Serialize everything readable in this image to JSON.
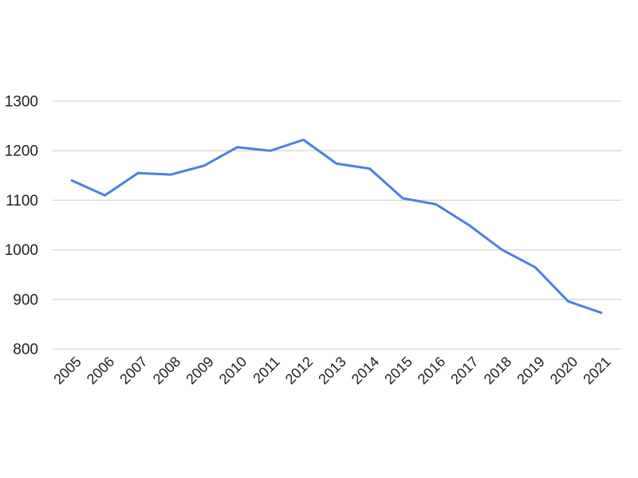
{
  "page": {
    "background_color": "#ffffff"
  },
  "chart_data": {
    "type": "line",
    "title": "",
    "xlabel": "",
    "ylabel": "",
    "categories": [
      "2005",
      "2006",
      "2007",
      "2008",
      "2009",
      "2010",
      "2011",
      "2012",
      "2013",
      "2014",
      "2015",
      "2016",
      "2017",
      "2018",
      "2019",
      "2020",
      "2021"
    ],
    "values": [
      1140,
      1110,
      1155,
      1152,
      1170,
      1207,
      1200,
      1222,
      1174,
      1164,
      1104,
      1092,
      1050,
      1000,
      965,
      896,
      873
    ],
    "ylim": [
      800,
      1300
    ],
    "yticks": [
      800,
      900,
      1000,
      1100,
      1200,
      1300
    ],
    "grid": true,
    "legend": "none",
    "x_label_rotation_deg": 45,
    "line_color": "#4a80e4",
    "gridline_color": "#d6d6d6",
    "tick_label_color": "#212121"
  }
}
